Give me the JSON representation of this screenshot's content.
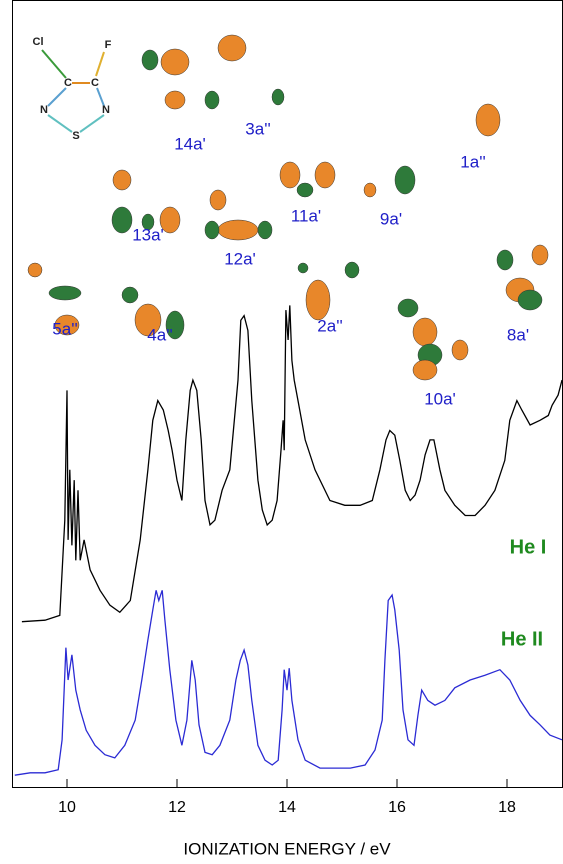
{
  "chart_data": {
    "type": "line",
    "x_label": "IONIZATION ENERGY / eV",
    "xlim": [
      9,
      19
    ],
    "xticks": [
      10,
      12,
      14,
      16,
      18
    ],
    "ylim": [
      0,
      100
    ],
    "series": [
      {
        "name": "He I",
        "color": "#000000",
        "label_color": "#1f8a1f",
        "x": [
          9.18,
          9.6,
          9.87,
          9.96,
          10.0,
          10.02,
          10.05,
          10.09,
          10.13,
          10.16,
          10.2,
          10.24,
          10.31,
          10.42,
          10.6,
          10.78,
          10.96,
          11.15,
          11.33,
          11.47,
          11.56,
          11.65,
          11.75,
          11.84,
          11.91,
          12.0,
          12.09,
          12.16,
          12.24,
          12.29,
          12.36,
          12.44,
          12.51,
          12.6,
          12.69,
          12.82,
          12.96,
          13.11,
          13.16,
          13.22,
          13.29,
          13.36,
          13.47,
          13.55,
          13.64,
          13.73,
          13.82,
          13.89,
          13.93,
          13.95,
          13.98,
          14.02,
          14.05,
          14.09,
          14.13,
          14.2,
          14.33,
          14.51,
          14.78,
          15.05,
          15.33,
          15.55,
          15.69,
          15.8,
          15.87,
          15.96,
          16.05,
          16.15,
          16.24,
          16.33,
          16.42,
          16.51,
          16.6,
          16.67,
          16.78,
          16.87,
          17.05,
          17.24,
          17.42,
          17.6,
          17.78,
          17.96,
          18.05,
          18.18,
          18.27,
          18.42,
          18.6,
          18.75,
          18.82,
          18.93,
          19.0
        ],
        "values": [
          21.0,
          21.2,
          21.8,
          33.9,
          50.4,
          31.4,
          40.3,
          30.7,
          39.0,
          28.8,
          37.7,
          28.8,
          31.4,
          27.6,
          25.0,
          23.1,
          22.2,
          23.7,
          31.4,
          40.3,
          46.6,
          49.1,
          47.9,
          45.3,
          42.8,
          39.0,
          36.4,
          44.1,
          50.4,
          51.7,
          50.4,
          44.1,
          36.4,
          33.3,
          33.9,
          37.7,
          40.3,
          51.7,
          59.3,
          59.9,
          58.0,
          49.1,
          39.0,
          35.2,
          33.3,
          33.9,
          36.4,
          42.8,
          46.6,
          42.8,
          60.6,
          56.8,
          61.2,
          54.2,
          51.7,
          49.1,
          44.1,
          40.3,
          36.4,
          35.8,
          35.8,
          36.4,
          40.3,
          44.1,
          45.3,
          44.7,
          41.5,
          37.7,
          36.4,
          37.1,
          39.0,
          42.2,
          44.1,
          44.1,
          40.3,
          37.7,
          35.8,
          34.5,
          34.5,
          35.8,
          37.7,
          41.5,
          46.6,
          49.1,
          47.9,
          46.0,
          46.6,
          47.2,
          48.5,
          49.8,
          51.7
        ]
      },
      {
        "name": "He II",
        "color": "#2b2bd4",
        "label_color": "#1f8a1f",
        "x": [
          9.05,
          9.33,
          9.6,
          9.84,
          9.91,
          9.98,
          10.02,
          10.09,
          10.16,
          10.24,
          10.35,
          10.51,
          10.69,
          10.87,
          11.05,
          11.24,
          11.36,
          11.47,
          11.56,
          11.62,
          11.67,
          11.73,
          11.78,
          11.87,
          11.98,
          12.09,
          12.18,
          12.24,
          12.27,
          12.33,
          12.4,
          12.51,
          12.64,
          12.78,
          12.96,
          13.07,
          13.15,
          13.22,
          13.29,
          13.36,
          13.47,
          13.6,
          13.73,
          13.84,
          13.91,
          13.95,
          14.0,
          14.04,
          14.09,
          14.2,
          14.33,
          14.6,
          14.87,
          15.15,
          15.42,
          15.6,
          15.73,
          15.78,
          15.84,
          15.91,
          15.96,
          16.04,
          16.11,
          16.2,
          16.31,
          16.38,
          16.45,
          16.56,
          16.69,
          16.87,
          17.05,
          17.33,
          17.6,
          17.87,
          18.05,
          18.24,
          18.42,
          18.6,
          18.78,
          19.0
        ],
        "values": [
          1.5,
          1.8,
          1.8,
          2.2,
          6.0,
          17.7,
          13.6,
          16.8,
          12.3,
          9.8,
          7.2,
          5.3,
          4.1,
          3.7,
          5.3,
          8.5,
          13.6,
          18.7,
          22.5,
          25.0,
          23.7,
          25.0,
          21.2,
          14.9,
          8.5,
          5.3,
          8.5,
          13.6,
          16.1,
          13.6,
          7.9,
          4.4,
          4.1,
          5.3,
          8.5,
          13.6,
          16.1,
          17.4,
          15.5,
          11.0,
          5.3,
          3.4,
          2.8,
          3.4,
          9.8,
          14.9,
          12.3,
          15.1,
          11.0,
          6.0,
          3.4,
          2.4,
          2.4,
          2.4,
          2.8,
          4.7,
          8.5,
          16.1,
          23.7,
          24.4,
          22.5,
          17.4,
          9.8,
          6.0,
          5.3,
          9.1,
          12.3,
          11.0,
          10.4,
          11.0,
          12.6,
          13.6,
          14.2,
          14.9,
          13.6,
          11.0,
          9.1,
          7.9,
          6.6,
          6.0
        ]
      }
    ],
    "orbital_labels": [
      "14a'",
      "3a''",
      "1a''",
      "13a'",
      "11a'",
      "9a'",
      "12a'",
      "5a''",
      "4a''",
      "2a''",
      "8a'",
      "10a'"
    ],
    "orbital_label_color": "#2020c8",
    "molecule_atoms": [
      "Cl",
      "F",
      "C",
      "C",
      "N",
      "N",
      "S"
    ]
  }
}
